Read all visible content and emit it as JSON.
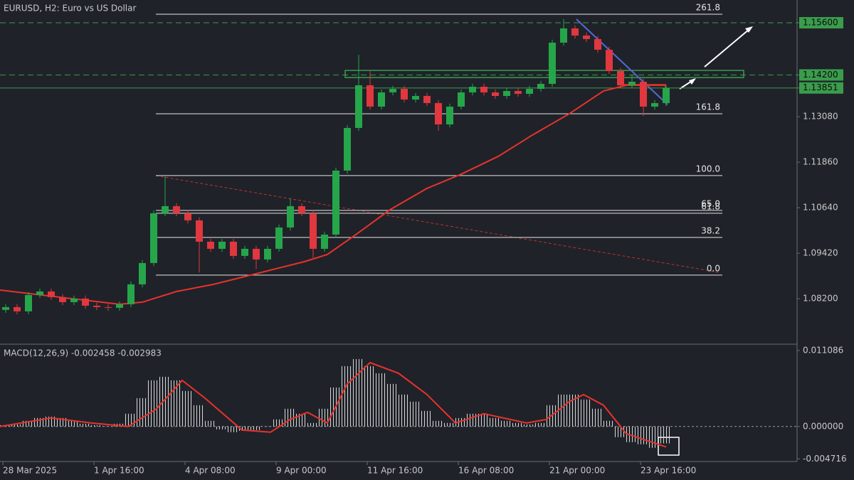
{
  "chart_data": {
    "type": "candlestick",
    "title": "EURUSD, H2:  Euro vs US Dollar",
    "xlim": [
      0,
      280
    ],
    "xticks": [
      {
        "value": 1,
        "label": "28 Mar 2025"
      },
      {
        "value": 33,
        "label": "1 Apr 16:00"
      },
      {
        "value": 65,
        "label": "4 Apr 08:00"
      },
      {
        "value": 97,
        "label": "9 Apr 00:00"
      },
      {
        "value": 129,
        "label": "11 Apr 16:00"
      },
      {
        "value": 161,
        "label": "16 Apr 08:00"
      },
      {
        "value": 193,
        "label": "21 Apr 00:00"
      },
      {
        "value": 225,
        "label": "23 Apr 16:00"
      }
    ],
    "ylim": [
      1.07,
      1.1621
    ],
    "yticks": [
      {
        "value": 1.1308,
        "label": "1.13080"
      },
      {
        "value": 1.1186,
        "label": "1.11860"
      },
      {
        "value": 1.1064,
        "label": "1.10640"
      },
      {
        "value": 1.0942,
        "label": "1.09420"
      },
      {
        "value": 1.082,
        "label": "1.08200"
      }
    ],
    "candles": {
      "up_color": "#26a64a",
      "down_color": "#e0383e",
      "x": [
        2,
        6,
        10,
        14,
        18,
        22,
        26,
        30,
        34,
        38,
        42,
        46,
        50,
        54,
        58,
        62,
        66,
        70,
        74,
        78,
        82,
        86,
        90,
        94,
        98,
        102,
        106,
        110,
        114,
        118,
        122,
        126,
        130,
        134,
        138,
        142,
        146,
        150,
        154,
        158,
        162,
        166,
        170,
        174,
        178,
        182,
        186,
        190,
        194,
        198,
        202,
        206,
        210,
        214,
        218,
        222,
        226,
        230,
        234
      ],
      "open": [
        1.079,
        1.07975,
        1.07861,
        1.08299,
        1.08394,
        1.08242,
        1.08108,
        1.08204,
        1.08013,
        1.07975,
        1.07956,
        1.08051,
        1.08585,
        1.09157,
        1.10491,
        1.10682,
        1.10491,
        1.10301,
        1.09729,
        1.09538,
        1.09729,
        1.09348,
        1.09538,
        1.09252,
        1.09538,
        1.1011,
        1.10682,
        1.10491,
        1.09538,
        1.09919,
        1.11635,
        1.12779,
        1.13923,
        1.13351,
        1.13732,
        1.13827,
        1.13541,
        1.13637,
        1.13446,
        1.12874,
        1.13351,
        1.13732,
        1.13884,
        1.13732,
        1.13637,
        1.1377,
        1.13694,
        1.13827,
        1.13961,
        1.15066,
        1.15448,
        1.15257,
        1.15162,
        1.14876,
        1.14304,
        1.13923,
        1.14018,
        1.13351,
        1.13446
      ],
      "high": [
        1.08055,
        1.08055,
        1.08379,
        1.08474,
        1.08474,
        1.08322,
        1.08284,
        1.08284,
        1.08093,
        1.08055,
        1.08131,
        1.08665,
        1.09237,
        1.10571,
        1.1148,
        1.10762,
        1.10571,
        1.10381,
        1.09809,
        1.09809,
        1.09809,
        1.09618,
        1.09618,
        1.09618,
        1.1019,
        1.109,
        1.10762,
        1.10571,
        1.09999,
        1.11715,
        1.12859,
        1.1474,
        1.143,
        1.13812,
        1.13907,
        1.13907,
        1.13717,
        1.13717,
        1.13526,
        1.13431,
        1.13812,
        1.13964,
        1.13964,
        1.13812,
        1.1385,
        1.1385,
        1.13907,
        1.14041,
        1.15146,
        1.157,
        1.15528,
        1.15337,
        1.15242,
        1.14956,
        1.14384,
        1.142,
        1.14098,
        1.13526,
        1.13931
      ],
      "low": [
        1.0782,
        1.07781,
        1.07781,
        1.08219,
        1.08162,
        1.08028,
        1.08028,
        1.07933,
        1.07895,
        1.07876,
        1.07876,
        1.07971,
        1.08505,
        1.09077,
        1.10411,
        1.10411,
        1.10221,
        1.089,
        1.09458,
        1.09458,
        1.09268,
        1.09268,
        1.09,
        1.09172,
        1.09458,
        1.1003,
        1.10411,
        1.093,
        1.09458,
        1.09839,
        1.11555,
        1.12699,
        1.13271,
        1.13271,
        1.13652,
        1.13461,
        1.13461,
        1.13366,
        1.127,
        1.12794,
        1.13271,
        1.13652,
        1.13652,
        1.13557,
        1.13557,
        1.13614,
        1.13614,
        1.13747,
        1.13881,
        1.14986,
        1.15177,
        1.15082,
        1.14796,
        1.14224,
        1.13843,
        1.13843,
        1.131,
        1.13271,
        1.13366
      ],
      "close": [
        1.07975,
        1.07861,
        1.08299,
        1.08394,
        1.08242,
        1.08108,
        1.08204,
        1.08013,
        1.07975,
        1.07956,
        1.08051,
        1.08585,
        1.09157,
        1.10491,
        1.10682,
        1.10491,
        1.10301,
        1.09729,
        1.09538,
        1.09729,
        1.09348,
        1.09538,
        1.09252,
        1.09538,
        1.1011,
        1.10682,
        1.10491,
        1.09538,
        1.09919,
        1.11635,
        1.12779,
        1.13923,
        1.13351,
        1.13732,
        1.13827,
        1.13541,
        1.13637,
        1.13446,
        1.12874,
        1.13351,
        1.13732,
        1.13884,
        1.13732,
        1.13637,
        1.1377,
        1.13694,
        1.13827,
        1.13961,
        1.15066,
        1.15448,
        1.15257,
        1.15162,
        1.14876,
        1.14304,
        1.13923,
        1.14018,
        1.13351,
        1.13446,
        1.13851
      ]
    },
    "moving_average": {
      "color": "#e8322c",
      "x": [
        0,
        25,
        42,
        50,
        62,
        75,
        95,
        107,
        115,
        125,
        137,
        150,
        162,
        175,
        187,
        200,
        212,
        220,
        234
      ],
      "values": [
        1.08433,
        1.08204,
        1.08051,
        1.08108,
        1.08394,
        1.08585,
        1.08966,
        1.09195,
        1.09386,
        1.09919,
        1.10587,
        1.11158,
        1.1154,
        1.12016,
        1.12588,
        1.1316,
        1.1377,
        1.13923,
        1.13923
      ]
    },
    "price_lines": {
      "color": "#3a9c4c",
      "levels": [
        {
          "value": 1.156,
          "label": "1.15600",
          "style": "dashed"
        },
        {
          "value": 1.142,
          "label": "1.14200",
          "style": "dashed"
        },
        {
          "value": 1.13851,
          "label": "1.13851",
          "style": "solid"
        }
      ]
    },
    "fibonacci": {
      "color": "#e6e6e6",
      "levels": [
        {
          "label": "261.8",
          "price": 1.15829
        },
        {
          "label": "161.8",
          "price": 1.1316
        },
        {
          "label": "100.0",
          "price": 1.11502
        },
        {
          "label": "65.0",
          "price": 1.10568
        },
        {
          "label": "61.8",
          "price": 1.10491
        },
        {
          "label": "38.2",
          "price": 1.09843
        },
        {
          "label": "0.0",
          "price": 1.08833
        }
      ]
    },
    "indicator": {
      "type": "macd",
      "title": "MACD(12,26,9) -0.002458 -0.002983",
      "ylim": [
        -0.005,
        0.0117
      ],
      "yticks": [
        0.011086,
        {
          "value": 0,
          "label": "0.000000"
        },
        -0.004716
      ],
      "histogram": {
        "color": "#d8d8d8",
        "values": [
          0.000207,
          0.000311,
          0.000829,
          0.001243,
          0.00145,
          0.001243,
          0.000829,
          0.000414,
          0.000207,
          5e-05,
          0.000414,
          0.001865,
          0.004144,
          0.006734,
          0.007252,
          0.006734,
          0.00518,
          0.003108,
          0.000829,
          -0.000414,
          -0.000829,
          -0.000622,
          -0.000518,
          5.2e-05,
          0.001036,
          0.00259,
          0.001865,
          0.000518,
          0.00259,
          0.005698,
          0.008806,
          0.009842,
          0.008806,
          0.00777,
          0.006216,
          0.004662,
          0.003626,
          0.002279,
          0.000829,
          0.000518,
          0.001243,
          0.001865,
          0.001865,
          0.001243,
          0.000829,
          0.000518,
          0.000311,
          0.000518,
          0.003108,
          0.004662,
          0.004662,
          0.003937,
          0.00259,
          0.000829,
          -0.001554,
          -0.002279,
          -0.00259,
          -0.003108,
          -0.002458
        ]
      },
      "signal": {
        "color": "#e8322c",
        "x": [
          0,
          18,
          32,
          45,
          55,
          64,
          72,
          85,
          95,
          102,
          108,
          115,
          122,
          130,
          140,
          150,
          160,
          170,
          185,
          192,
          200,
          205,
          212,
          220,
          234
        ],
        "values": [
          0.0,
          0.001243,
          0.000518,
          0.0,
          0.00259,
          0.006734,
          0.004144,
          -0.000518,
          -0.000829,
          0.001036,
          0.002072,
          0.000518,
          0.006216,
          0.009324,
          0.00777,
          0.004662,
          0.000518,
          0.001865,
          0.000518,
          0.001036,
          0.003626,
          0.004662,
          0.003108,
          -0.001036,
          -0.002983
        ]
      }
    }
  }
}
